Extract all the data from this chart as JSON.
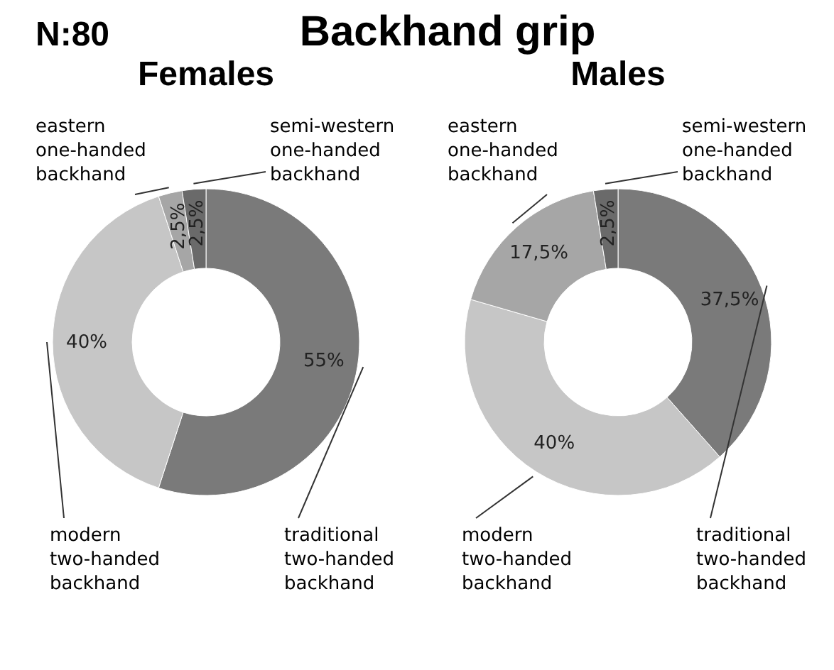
{
  "chart_data": [
    {
      "type": "other",
      "title": "Backhand grip",
      "annotations": [
        "N:80"
      ]
    },
    {
      "type": "donut",
      "title": "Females",
      "categories": [
        "traditional two-handed backhand",
        "modern two-handed backhand",
        "eastern one-handed backhand",
        "semi-western one-handed backhand"
      ],
      "values": [
        55,
        40,
        2.5,
        2.5
      ],
      "value_labels": [
        "55%",
        "40%",
        "2,5%",
        "2,5%"
      ],
      "colors": [
        "#7a7a7a",
        "#c6c6c6",
        "#a6a6a6",
        "#6a6a6a"
      ]
    },
    {
      "type": "donut",
      "title": "Males",
      "categories": [
        "traditional two-handed backhand",
        "modern two-handed backhand",
        "eastern one-handed backhand",
        "semi-western one-handed backhand"
      ],
      "values": [
        37.5,
        40,
        17.5,
        2.5
      ],
      "value_labels": [
        "37,5%",
        "40%",
        "17,5%",
        "2,5%"
      ],
      "colors": [
        "#7a7a7a",
        "#c6c6c6",
        "#a6a6a6",
        "#6a6a6a"
      ]
    }
  ]
}
